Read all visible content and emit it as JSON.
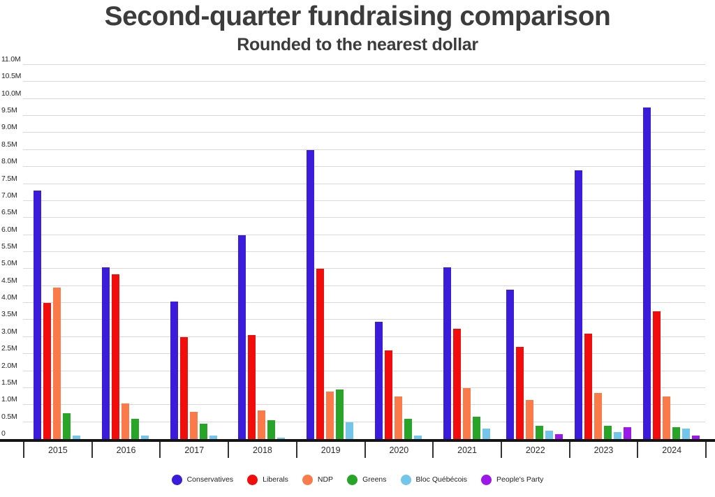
{
  "page": {
    "title": "Second-quarter fundraising comparison",
    "subtitle": "Rounded to the nearest dollar"
  },
  "chart_data": {
    "type": "bar",
    "variant": "grouped-column",
    "title": "Second-quarter fundraising comparison",
    "subtitle": "Rounded to the nearest dollar",
    "unit": "millions of dollars (M)",
    "categories": [
      "2015",
      "2016",
      "2017",
      "2018",
      "2019",
      "2020",
      "2021",
      "2022",
      "2023",
      "2024"
    ],
    "series": [
      {
        "name": "Conservatives",
        "color": "#3b1cdb",
        "values_m": [
          7.3,
          5.05,
          4.05,
          6.0,
          8.5,
          3.45,
          5.05,
          4.4,
          7.9,
          9.75
        ]
      },
      {
        "name": "Liberals",
        "color": "#f20d0d",
        "values_m": [
          4.0,
          4.85,
          3.0,
          3.05,
          5.0,
          2.6,
          3.25,
          2.7,
          3.1,
          3.75
        ]
      },
      {
        "name": "NDP",
        "color": "#fa7a4a",
        "values_m": [
          4.45,
          1.05,
          0.8,
          0.85,
          1.4,
          1.25,
          1.5,
          1.15,
          1.35,
          1.25
        ]
      },
      {
        "name": "Greens",
        "color": "#28a428",
        "values_m": [
          0.75,
          0.6,
          0.45,
          0.55,
          1.45,
          0.6,
          0.65,
          0.4,
          0.4,
          0.35
        ]
      },
      {
        "name": "Bloc Québécois",
        "color": "#72c5eb",
        "values_m": [
          0.1,
          0.1,
          0.1,
          0.05,
          0.5,
          0.1,
          0.3,
          0.25,
          0.2,
          0.3
        ]
      },
      {
        "name": "People's Party",
        "color": "#9c17ea",
        "values_m": [
          null,
          null,
          null,
          null,
          null,
          null,
          null,
          0.15,
          0.35,
          0.1
        ]
      }
    ],
    "y_axis": {
      "min": 0,
      "max": 11,
      "tick_step": 0.5,
      "ticks": [
        {
          "v": 0,
          "label": "0"
        },
        {
          "v": 0.5,
          "label": "0.5M"
        },
        {
          "v": 1,
          "label": "1.0M"
        },
        {
          "v": 1.5,
          "label": "1.5M"
        },
        {
          "v": 2,
          "label": "2.0M"
        },
        {
          "v": 2.5,
          "label": "2.5M"
        },
        {
          "v": 3,
          "label": "3.0M"
        },
        {
          "v": 3.5,
          "label": "3.5M"
        },
        {
          "v": 4,
          "label": "4.0M"
        },
        {
          "v": 4.5,
          "label": "4.5M"
        },
        {
          "v": 5,
          "label": "5.0M"
        },
        {
          "v": 5.5,
          "label": "5.5M"
        },
        {
          "v": 6,
          "label": "6.0M"
        },
        {
          "v": 6.5,
          "label": "6.5M"
        },
        {
          "v": 7,
          "label": "7.0M"
        },
        {
          "v": 7.5,
          "label": "7.5M"
        },
        {
          "v": 8,
          "label": "8.0M"
        },
        {
          "v": 8.5,
          "label": "8.5M"
        },
        {
          "v": 9,
          "label": "9.0M"
        },
        {
          "v": 9.5,
          "label": "9.5M"
        },
        {
          "v": 10,
          "label": "10.0M"
        },
        {
          "v": 10.5,
          "label": "10.5M"
        },
        {
          "v": 11,
          "label": "11.0M"
        }
      ]
    },
    "legend": {
      "position": "bottom",
      "entries": [
        "Conservatives",
        "Liberals",
        "NDP",
        "Greens",
        "Bloc Québécois",
        "People's Party"
      ]
    },
    "grid": "horizontal"
  },
  "theme": {
    "background": "#ffffff",
    "gridline_color": "#d9d9d9",
    "axis_color": "#141414",
    "separator_color": "#333333",
    "title_color": "#3c3c3c",
    "label_color": "#262626"
  }
}
